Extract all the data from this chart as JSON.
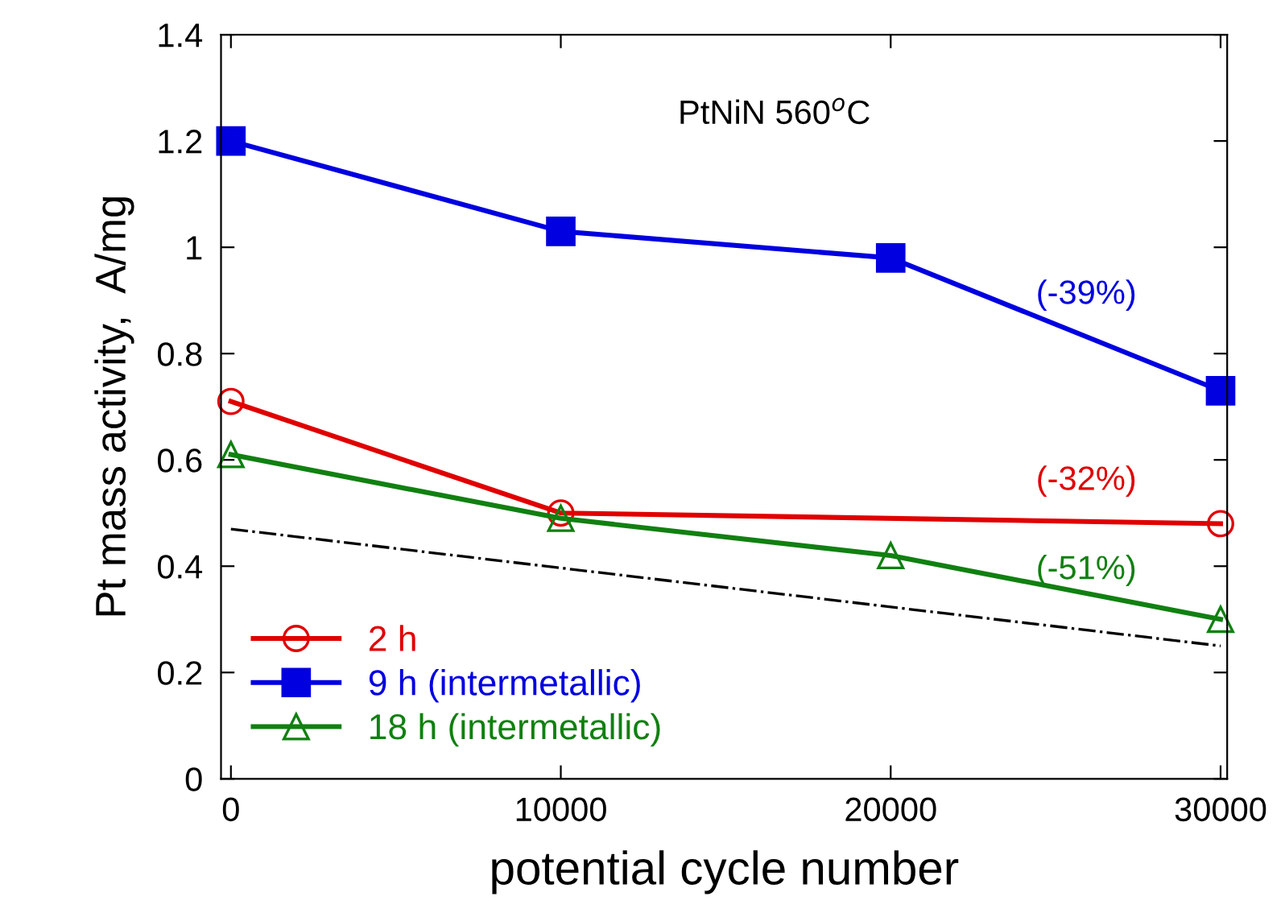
{
  "chart_data": {
    "type": "line",
    "title": "PtNiN 560$^{o}$C",
    "xlabel": "potential cycle number",
    "ylabel": "Pt mass activity,  A/mg",
    "x": [
      0,
      10000,
      20000,
      30000
    ],
    "series": [
      {
        "name": "2 h",
        "color": "#e00000",
        "marker": "circle",
        "values": [
          0.71,
          0.5,
          null,
          0.48
        ]
      },
      {
        "name": "9 h (intermetallic)",
        "color": "#0000e0",
        "marker": "square",
        "values": [
          1.2,
          1.03,
          0.98,
          0.73
        ]
      },
      {
        "name": "18 h (intermetallic)",
        "color": "#108010",
        "marker": "triangle",
        "values": [
          0.61,
          0.49,
          0.42,
          0.3
        ]
      },
      {
        "color": "#000000",
        "marker": "none",
        "line_style": "dashdot",
        "x": [
          0,
          30000
        ],
        "values": [
          0.47,
          0.25
        ]
      }
    ],
    "annotations": [
      "(-39%)",
      "(-32%)",
      "(-51%)"
    ],
    "xlim": [
      -300,
      30200
    ],
    "ylim": [
      0,
      1.4
    ],
    "xticks": [
      0,
      10000,
      20000,
      30000
    ],
    "yticks": [
      0,
      0.2,
      0.4,
      0.6,
      0.8,
      1,
      1.2,
      1.4
    ],
    "grid": false,
    "legend": "bottom left"
  }
}
